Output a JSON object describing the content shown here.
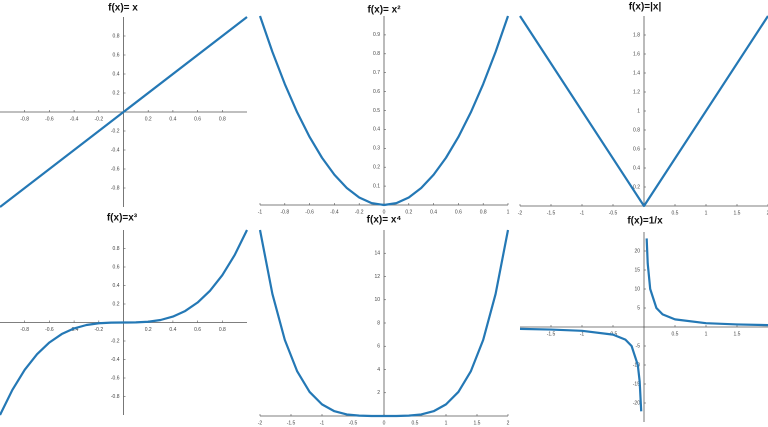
{
  "chart_data": [
    {
      "type": "line",
      "title": "f(x)= x",
      "color": "#2478b5",
      "x": [
        -1,
        1
      ],
      "values": [
        -1,
        1
      ],
      "xlim": [
        -1,
        1
      ],
      "ylim": [
        -1,
        1
      ],
      "xticks": [
        -0.8,
        -0.6,
        -0.4,
        -0.2,
        0.2,
        0.4,
        0.6,
        0.8
      ],
      "yticks": [
        -0.8,
        -0.6,
        -0.4,
        -0.2,
        0.2,
        0.4,
        0.6,
        0.8
      ]
    },
    {
      "type": "line",
      "title": "f(x)= x²",
      "color": "#2478b5",
      "x": [
        -1,
        -0.9,
        -0.8,
        -0.7,
        -0.6,
        -0.5,
        -0.4,
        -0.3,
        -0.2,
        -0.1,
        0,
        0.1,
        0.2,
        0.3,
        0.4,
        0.5,
        0.6,
        0.7,
        0.8,
        0.9,
        1
      ],
      "values": [
        1,
        0.81,
        0.64,
        0.49,
        0.36,
        0.25,
        0.16,
        0.09,
        0.04,
        0.01,
        0,
        0.01,
        0.04,
        0.09,
        0.16,
        0.25,
        0.36,
        0.49,
        0.64,
        0.81,
        1
      ],
      "xlim": [
        -1,
        1
      ],
      "ylim": [
        0,
        1
      ],
      "xticks": [
        -1,
        -0.8,
        -0.6,
        -0.4,
        -0.2,
        0,
        0.2,
        0.4,
        0.6,
        0.8,
        1
      ],
      "yticks": [
        0.1,
        0.2,
        0.3,
        0.4,
        0.5,
        0.6,
        0.7,
        0.8,
        0.9
      ]
    },
    {
      "type": "line",
      "title": "f(x)=|x|",
      "color": "#2478b5",
      "x": [
        -2,
        0,
        2
      ],
      "values": [
        2,
        0,
        2
      ],
      "xlim": [
        -2,
        2
      ],
      "ylim": [
        0,
        2
      ],
      "xticks": [
        -2,
        -1.5,
        -1,
        -0.5,
        0.5,
        1,
        1.5,
        2
      ],
      "yticks": [
        0.2,
        0.4,
        0.6,
        0.8,
        1,
        1.2,
        1.4,
        1.6,
        1.8
      ]
    },
    {
      "type": "line",
      "title": "f(x)=x³",
      "color": "#2478b5",
      "x": [
        -1,
        -0.9,
        -0.8,
        -0.7,
        -0.6,
        -0.5,
        -0.4,
        -0.3,
        -0.2,
        -0.1,
        0,
        0.1,
        0.2,
        0.3,
        0.4,
        0.5,
        0.6,
        0.7,
        0.8,
        0.9,
        1
      ],
      "values": [
        -1,
        -0.729,
        -0.512,
        -0.343,
        -0.216,
        -0.125,
        -0.064,
        -0.027,
        -0.008,
        -0.001,
        0,
        0.001,
        0.008,
        0.027,
        0.064,
        0.125,
        0.216,
        0.343,
        0.512,
        0.729,
        1
      ],
      "xlim": [
        -1,
        1
      ],
      "ylim": [
        -1,
        1
      ],
      "xticks": [
        -0.8,
        -0.6,
        -0.4,
        -0.2,
        0.2,
        0.4,
        0.6,
        0.8
      ],
      "yticks": [
        -0.8,
        -0.6,
        -0.4,
        -0.2,
        0.2,
        0.4,
        0.6,
        0.8
      ]
    },
    {
      "type": "line",
      "title": "f(x)= x⁴",
      "color": "#2478b5",
      "x": [
        -2,
        -1.8,
        -1.6,
        -1.4,
        -1.2,
        -1,
        -0.8,
        -0.6,
        -0.4,
        -0.2,
        0,
        0.2,
        0.4,
        0.6,
        0.8,
        1,
        1.2,
        1.4,
        1.6,
        1.8,
        2
      ],
      "values": [
        16,
        10.5,
        6.55,
        3.84,
        2.07,
        1,
        0.41,
        0.13,
        0.03,
        0,
        0,
        0,
        0.03,
        0.13,
        0.41,
        1,
        2.07,
        3.84,
        6.55,
        10.5,
        16
      ],
      "xlim": [
        -2,
        2
      ],
      "ylim": [
        0,
        16
      ],
      "xticks": [
        -2,
        -1.5,
        -1,
        -0.5,
        0,
        0.5,
        1,
        1.5,
        2
      ],
      "yticks": [
        2,
        4,
        6,
        8,
        10,
        12,
        14
      ]
    },
    {
      "type": "line",
      "title": "f(x)=1/x",
      "color": "#2478b5",
      "x": [
        -2,
        -1.5,
        -1,
        -0.5,
        -0.3,
        -0.2,
        -0.1,
        -0.07,
        -0.045,
        0,
        0.043,
        0.06,
        0.1,
        0.2,
        0.3,
        0.5,
        1,
        1.5,
        2
      ],
      "values": [
        -0.5,
        -0.67,
        -1,
        -2,
        -3.33,
        -5,
        -10,
        -14.3,
        -22.2,
        null,
        23.3,
        16.7,
        10,
        5,
        3.33,
        2,
        1,
        0.67,
        0.5
      ],
      "xlim": [
        -2,
        2
      ],
      "ylim": [
        -25,
        25
      ],
      "xticks": [
        -1.5,
        -1,
        -0.5,
        0.5,
        1,
        1.5
      ],
      "yticks": [
        -20,
        -15,
        -10,
        -5,
        5,
        10,
        15,
        20
      ]
    }
  ]
}
